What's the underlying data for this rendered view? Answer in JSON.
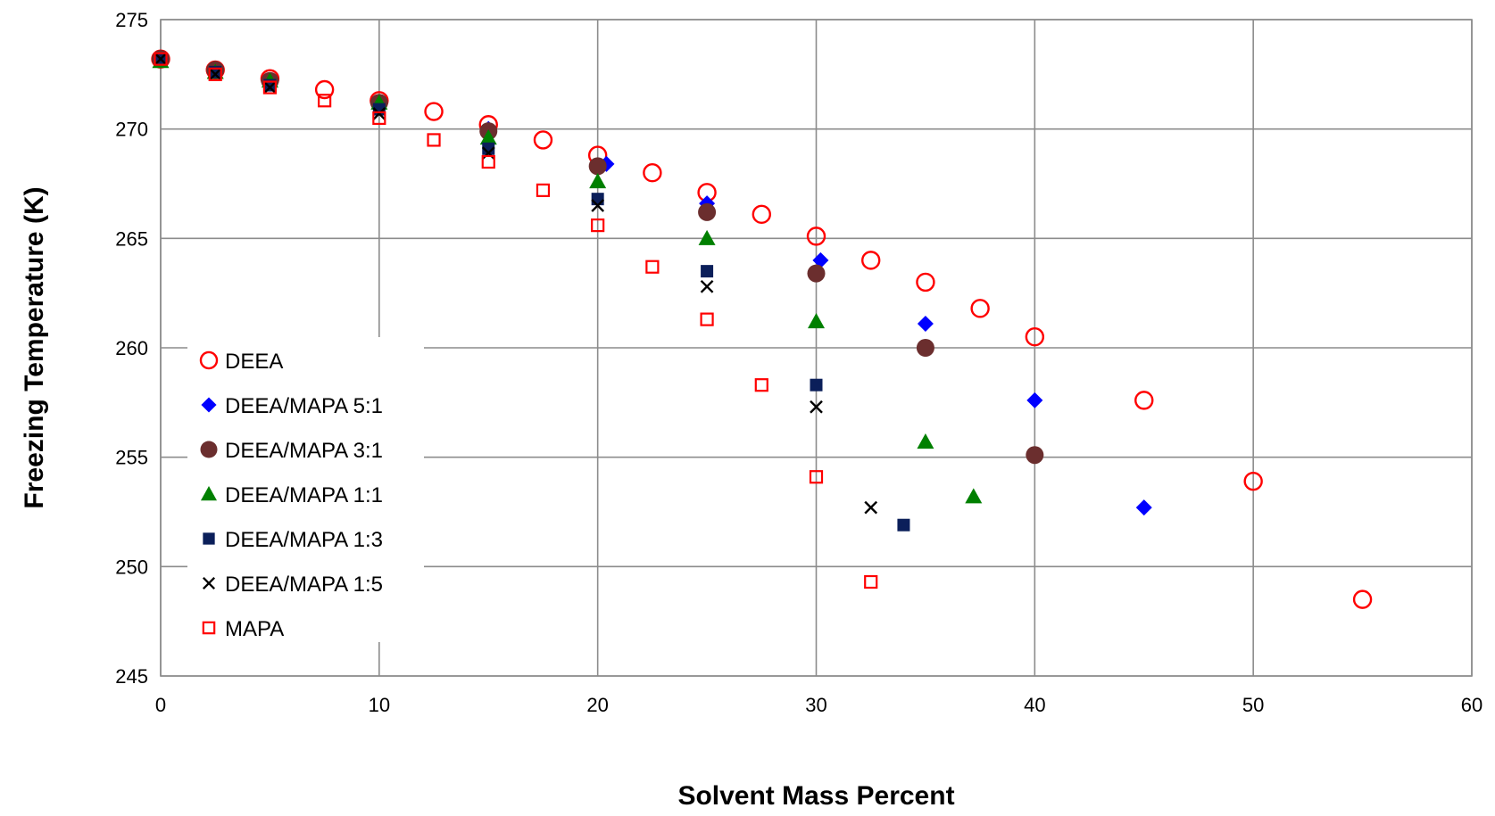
{
  "chart_data": {
    "type": "scatter",
    "title": "",
    "xlabel": "Solvent Mass Percent",
    "ylabel": "Freezing Temperature    (K)",
    "xlim": [
      0,
      60
    ],
    "ylim": [
      245,
      275
    ],
    "xticks": [
      0,
      10,
      20,
      30,
      40,
      50,
      60
    ],
    "yticks": [
      245,
      250,
      255,
      260,
      265,
      270,
      275
    ],
    "grid": true,
    "legend_position": "left-middle",
    "series": [
      {
        "name": "DEEA",
        "marker": "circle-open",
        "color": "#ff0000",
        "points": [
          [
            0,
            273.2
          ],
          [
            2.5,
            272.7
          ],
          [
            5,
            272.3
          ],
          [
            7.5,
            271.8
          ],
          [
            10,
            271.3
          ],
          [
            12.5,
            270.8
          ],
          [
            15,
            270.2
          ],
          [
            17.5,
            269.5
          ],
          [
            20,
            268.8
          ],
          [
            22.5,
            268.0
          ],
          [
            25,
            267.1
          ],
          [
            27.5,
            266.1
          ],
          [
            30,
            265.1
          ],
          [
            32.5,
            264.0
          ],
          [
            35,
            263.0
          ],
          [
            37.5,
            261.8
          ],
          [
            40,
            260.5
          ],
          [
            45,
            257.6
          ],
          [
            50,
            253.9
          ],
          [
            55,
            248.5
          ]
        ]
      },
      {
        "name": "DEEA/MAPA 5:1",
        "marker": "diamond",
        "color": "#0000ff",
        "points": [
          [
            0,
            273.2
          ],
          [
            2.5,
            272.7
          ],
          [
            5,
            272.2
          ],
          [
            10,
            271.2
          ],
          [
            15,
            270.0
          ],
          [
            20.4,
            268.4
          ],
          [
            25,
            266.6
          ],
          [
            30.2,
            264.0
          ],
          [
            35,
            261.1
          ],
          [
            40,
            257.6
          ],
          [
            45,
            252.7
          ]
        ]
      },
      {
        "name": "DEEA/MAPA 3:1",
        "marker": "circle-filled",
        "color": "#6b2e2e",
        "points": [
          [
            0,
            273.2
          ],
          [
            2.5,
            272.7
          ],
          [
            5,
            272.2
          ],
          [
            10,
            271.2
          ],
          [
            15,
            269.9
          ],
          [
            20,
            268.3
          ],
          [
            25,
            266.2
          ],
          [
            30,
            263.4
          ],
          [
            35,
            260.0
          ],
          [
            40,
            255.1
          ]
        ]
      },
      {
        "name": "DEEA/MAPA 1:1",
        "marker": "triangle",
        "color": "#008000",
        "points": [
          [
            0,
            273.1
          ],
          [
            2.5,
            272.6
          ],
          [
            5,
            272.2
          ],
          [
            10,
            271.2
          ],
          [
            15,
            269.6
          ],
          [
            20,
            267.6
          ],
          [
            25,
            265.0
          ],
          [
            30,
            261.2
          ],
          [
            35,
            255.7
          ],
          [
            37.2,
            253.2
          ]
        ]
      },
      {
        "name": "DEEA/MAPA 1:3",
        "marker": "square-filled",
        "color": "#0b1f5a",
        "points": [
          [
            0,
            273.2
          ],
          [
            2.5,
            272.6
          ],
          [
            5,
            272.0
          ],
          [
            10,
            270.9
          ],
          [
            15,
            269.1
          ],
          [
            20,
            266.8
          ],
          [
            25,
            263.5
          ],
          [
            30,
            258.3
          ],
          [
            34,
            251.9
          ]
        ]
      },
      {
        "name": "DEEA/MAPA 1:5",
        "marker": "x",
        "color": "#000000",
        "points": [
          [
            0,
            273.2
          ],
          [
            2.5,
            272.5
          ],
          [
            5,
            271.9
          ],
          [
            10,
            270.7
          ],
          [
            15,
            268.9
          ],
          [
            20,
            266.5
          ],
          [
            25,
            262.8
          ],
          [
            30,
            257.3
          ],
          [
            32.5,
            252.7
          ]
        ]
      },
      {
        "name": "MAPA",
        "marker": "square-open",
        "color": "#ff0000",
        "points": [
          [
            0,
            273.2
          ],
          [
            2.5,
            272.5
          ],
          [
            5,
            271.9
          ],
          [
            7.5,
            271.3
          ],
          [
            10,
            270.5
          ],
          [
            12.5,
            269.5
          ],
          [
            15,
            268.5
          ],
          [
            17.5,
            267.2
          ],
          [
            20,
            265.6
          ],
          [
            22.5,
            263.7
          ],
          [
            25,
            261.3
          ],
          [
            27.5,
            258.3
          ],
          [
            30,
            254.1
          ],
          [
            32.5,
            249.3
          ]
        ]
      }
    ]
  }
}
